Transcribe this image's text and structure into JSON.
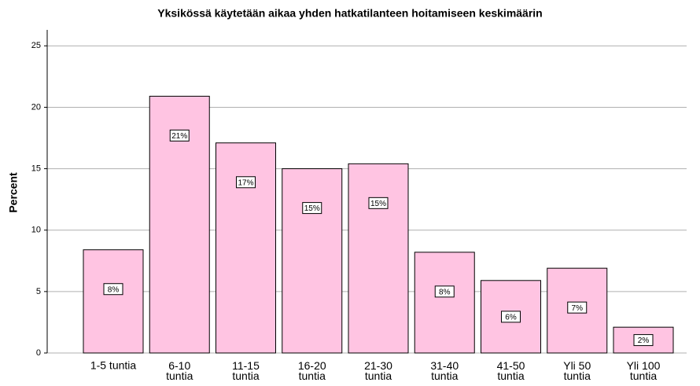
{
  "chart_data": {
    "type": "bar",
    "title": "Yksikössä käytetään aikaa yhden hatkatilanteen hoitamiseen keskimäärin",
    "y_label": "Percent",
    "categories": [
      "1-5 tuntia",
      "6-10\ntuntia",
      "11-15\ntuntia",
      "16-20\ntuntia",
      "21-30\ntuntia",
      "31-40\ntuntia",
      "41-50\ntuntia",
      "Yli 50\ntuntia",
      "Yli 100\ntuntia"
    ],
    "values": [
      8.4,
      20.9,
      17.1,
      15.0,
      15.4,
      8.2,
      5.9,
      6.9,
      2.1
    ],
    "value_labels": [
      "8%",
      "21%",
      "17%",
      "15%",
      "15%",
      "8%",
      "6%",
      "7%",
      "2%"
    ],
    "color": "#ffc4e2",
    "ylim": [
      0,
      26.3
    ],
    "yticks": [
      0,
      5,
      10,
      15,
      20,
      25
    ],
    "grid": true
  }
}
